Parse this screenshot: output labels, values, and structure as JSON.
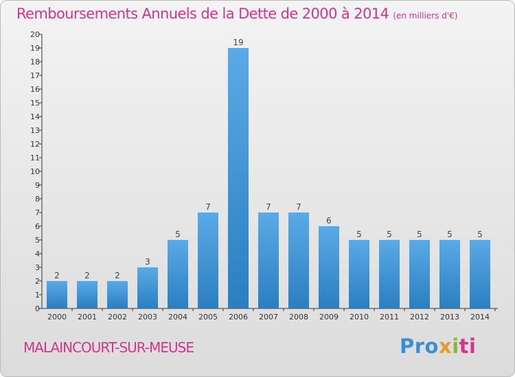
{
  "header": {
    "title": "Remboursements Annuels de la Dette de 2000 à 2014",
    "subtitle": "(en milliers d'€)"
  },
  "footer": {
    "commune": "MALAINCOURT-SUR-MEUSE",
    "brand": [
      "Pro",
      "x",
      "i",
      "ti"
    ]
  },
  "colors": {
    "title": "#d0368a",
    "bar_top": "#5aaae6",
    "bar_bottom": "#2a7fc0",
    "brand_blue": "#3a8ed6",
    "brand_orange": "#e89a2a",
    "brand_green": "#86b83c",
    "brand_pink": "#d0368a"
  },
  "chart_data": {
    "type": "bar",
    "title": "Remboursements Annuels de la Dette de 2000 à 2014",
    "subtitle": "(en milliers d'€)",
    "categories": [
      "2000",
      "2001",
      "2002",
      "2003",
      "2004",
      "2005",
      "2006",
      "2007",
      "2008",
      "2009",
      "2010",
      "2011",
      "2012",
      "2013",
      "2014"
    ],
    "values": [
      2,
      2,
      2,
      3,
      5,
      7,
      19,
      7,
      7,
      6,
      5,
      5,
      5,
      5,
      5
    ],
    "ylim": [
      0,
      20
    ],
    "yticks": [
      0,
      1,
      2,
      3,
      4,
      5,
      6,
      7,
      8,
      9,
      10,
      11,
      12,
      13,
      14,
      15,
      16,
      17,
      18,
      19,
      20
    ],
    "xlabel": "",
    "ylabel": "",
    "grid": false,
    "legend": "none"
  }
}
